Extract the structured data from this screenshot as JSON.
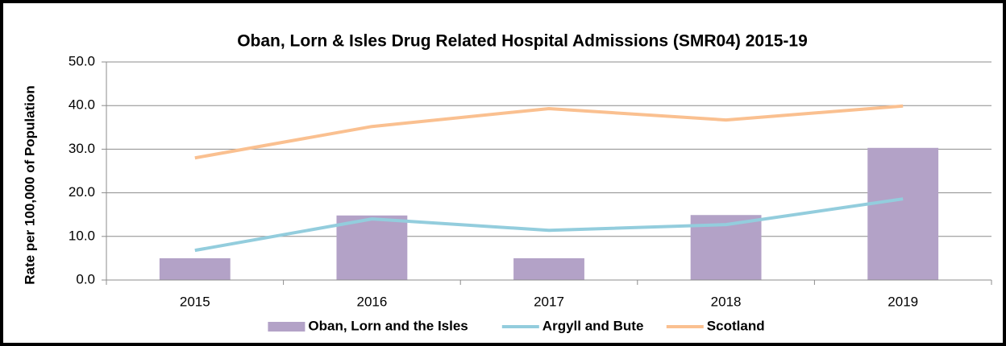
{
  "chart_data": {
    "type": "bar_line",
    "title": "Oban, Lorn & Isles Drug Related Hospital Admissions (SMR04) 2015-19",
    "y_axis_label": "Rate per 100,000 of Population",
    "categories": [
      "2015",
      "2016",
      "2017",
      "2018",
      "2019"
    ],
    "series": [
      {
        "name": "Oban, Lorn and the Isles",
        "type": "bar",
        "color": "#b3a2c7",
        "values": [
          5.0,
          14.8,
          5.0,
          14.9,
          30.3
        ]
      },
      {
        "name": "Argyll and Bute",
        "type": "line",
        "color": "#93cddd",
        "values": [
          6.8,
          14.0,
          11.4,
          12.7,
          18.6
        ]
      },
      {
        "name": "Scotland",
        "type": "line",
        "color": "#fac090",
        "values": [
          28.0,
          35.2,
          39.3,
          36.7,
          39.9
        ]
      }
    ],
    "ylim": [
      0,
      50
    ],
    "yticks": [
      {
        "value": 0,
        "label": "0.0"
      },
      {
        "value": 10,
        "label": "10.0"
      },
      {
        "value": 20,
        "label": "20.0"
      },
      {
        "value": 30,
        "label": "30.0"
      },
      {
        "value": 40,
        "label": "40.0"
      },
      {
        "value": 50,
        "label": "50.0"
      }
    ],
    "grid": true,
    "legend": "bottom"
  }
}
